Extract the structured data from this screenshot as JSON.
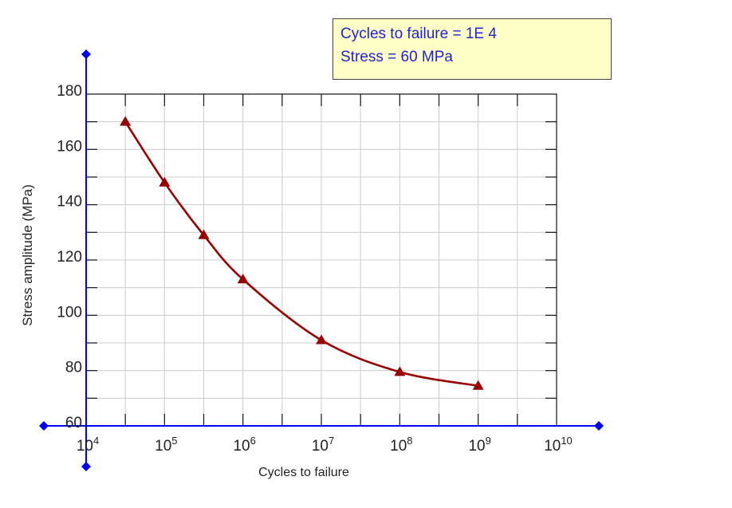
{
  "info_box": {
    "cycles_line": "Cycles to failure = 1E 4",
    "stress_line": "Stress = 60 MPa"
  },
  "colors": {
    "axis": "#0000ee",
    "curve": "#990000",
    "grid": "#cccccc",
    "info_bg": "#ffffc8",
    "info_text": "#2222dd"
  },
  "chart_data": {
    "type": "line",
    "xlabel": "Cycles to failure",
    "ylabel": "Stress amplitude (MPa)",
    "x_scale": "log",
    "xlim": [
      10000,
      10000000000
    ],
    "ylim": [
      60,
      180
    ],
    "grid": true,
    "x_tick_labels": [
      {
        "base": "10",
        "exp": "4"
      },
      {
        "base": "10",
        "exp": "5"
      },
      {
        "base": "10",
        "exp": "6"
      },
      {
        "base": "10",
        "exp": "7"
      },
      {
        "base": "10",
        "exp": "8"
      },
      {
        "base": "10",
        "exp": "9"
      },
      {
        "base": "10",
        "exp": "10"
      }
    ],
    "y_tick_labels": [
      "60",
      "80",
      "100",
      "120",
      "140",
      "160",
      "180"
    ],
    "series": [
      {
        "marker": "triangle",
        "x": [
          31623,
          100000,
          316228,
          1000000,
          10000000,
          100000000,
          1000000000
        ],
        "y": [
          170,
          148,
          129,
          113,
          91,
          79.5,
          74.5
        ]
      }
    ]
  }
}
